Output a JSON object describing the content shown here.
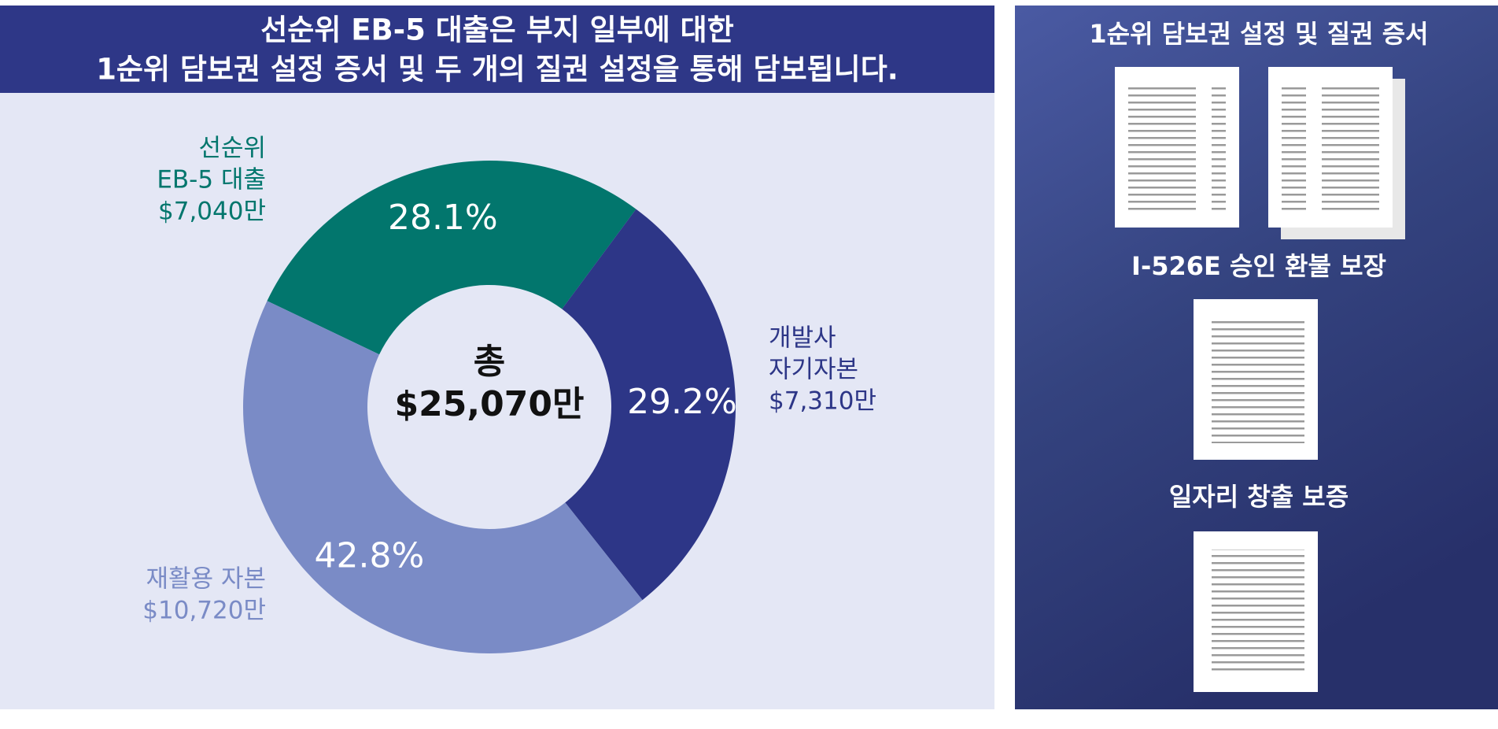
{
  "chart_data": {
    "type": "donut",
    "title": [
      "선순위 EB-5 대출은 부지 일부에 대한",
      "1순위 담보권 설정 증서 및 두 개의 질권 설정을 통해 담보됩니다."
    ],
    "categories": [
      [
        "선순위",
        "EB-5 대출"
      ],
      [
        "개발사",
        "자기자본"
      ],
      [
        "재활용 자본"
      ]
    ],
    "amounts": [
      "$7,040만",
      "$7,310만",
      "$10,720만"
    ],
    "values": [
      28.1,
      29.2,
      42.8
    ],
    "value_labels": [
      "28.1%",
      "29.2%",
      "42.8%"
    ],
    "colors": [
      "#02766d",
      "#2d3687",
      "#7a8bc6"
    ],
    "center_label": [
      "총",
      "$25,070만"
    ]
  },
  "side_panel": {
    "sections": [
      "1순위 담보권 설정 및 질권 증서",
      "I-526E 승인 환불 보장",
      "일자리 창출 보증"
    ]
  }
}
